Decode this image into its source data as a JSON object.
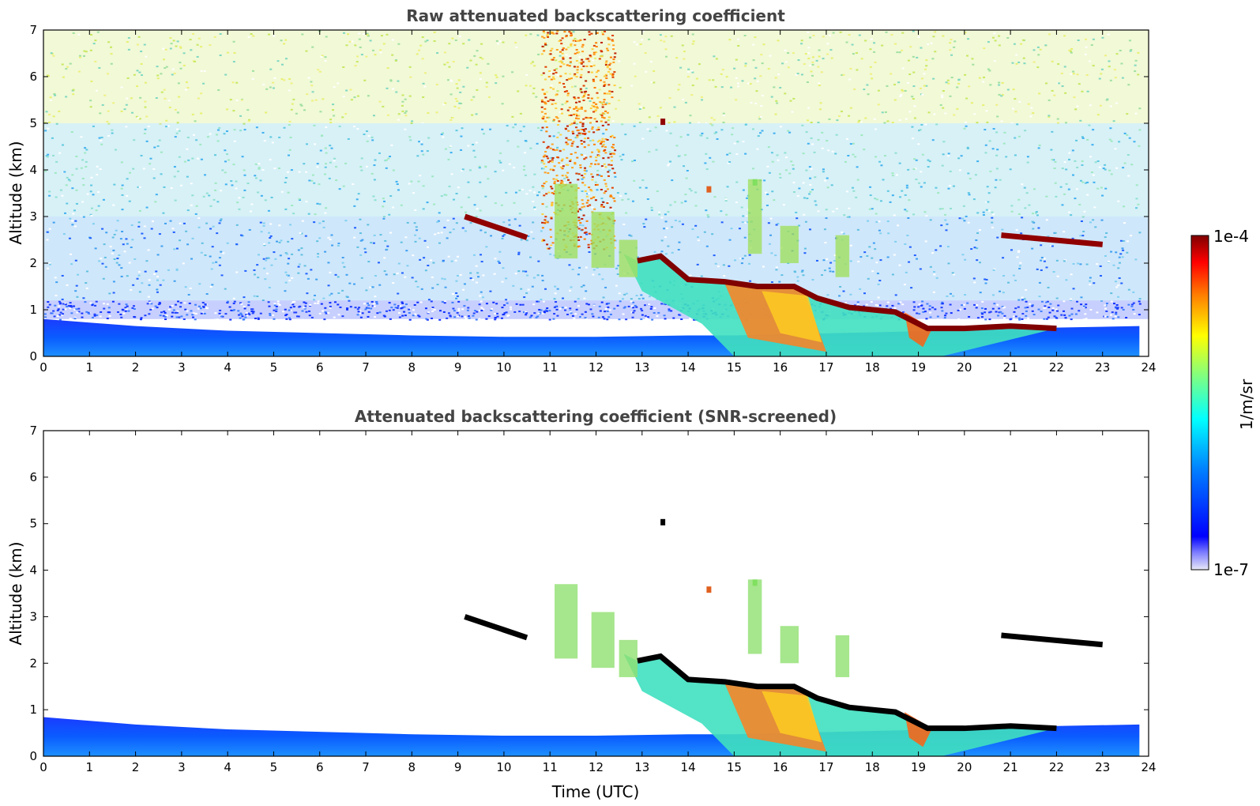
{
  "chart_data": [
    {
      "type": "heatmap",
      "title": "Raw attenuated backscattering coefficient",
      "xlabel": "",
      "ylabel": "Altitude (km)",
      "xlim": [
        0,
        24
      ],
      "ylim": [
        0,
        7
      ],
      "xticks": [
        "0",
        "1",
        "2",
        "3",
        "4",
        "5",
        "6",
        "7",
        "8",
        "9",
        "10",
        "11",
        "12",
        "13",
        "14",
        "15",
        "16",
        "17",
        "18",
        "19",
        "20",
        "21",
        "22",
        "23",
        "24"
      ],
      "yticks": [
        "0",
        "1",
        "2",
        "3",
        "4",
        "5",
        "6",
        "7"
      ],
      "colorscale": "jet",
      "background_noise": true,
      "features": {
        "boundary_layer": [
          [
            0,
            0.8
          ],
          [
            2,
            0.65
          ],
          [
            4,
            0.55
          ],
          [
            6,
            0.5
          ],
          [
            8,
            0.45
          ],
          [
            10,
            0.42
          ],
          [
            12,
            0.42
          ],
          [
            14,
            0.45
          ],
          [
            15,
            0.45
          ],
          [
            19.5,
            0.55
          ],
          [
            21,
            0.6
          ],
          [
            23.8,
            0.65
          ]
        ],
        "cloud_base": [
          [
            12.9,
            2.05
          ],
          [
            13.4,
            2.15
          ],
          [
            14,
            1.65
          ],
          [
            14.8,
            1.6
          ],
          [
            15.5,
            1.5
          ],
          [
            16.3,
            1.5
          ],
          [
            16.8,
            1.25
          ],
          [
            17.5,
            1.05
          ],
          [
            18.5,
            0.95
          ],
          [
            19.2,
            0.6
          ],
          [
            20,
            0.6
          ],
          [
            21,
            0.65
          ],
          [
            22,
            0.6
          ]
        ],
        "elevated_layers": [
          {
            "x": [
              9.15,
              10.5
            ],
            "y": [
              3.0,
              2.55
            ]
          },
          {
            "x": [
              20.8,
              23.0
            ],
            "y": [
              2.6,
              2.4
            ]
          }
        ]
      }
    },
    {
      "type": "heatmap",
      "title": "Attenuated backscattering coefficient (SNR-screened)",
      "xlabel": "Time (UTC)",
      "ylabel": "Altitude (km)",
      "xlim": [
        0,
        24
      ],
      "ylim": [
        0,
        7
      ],
      "xticks": [
        "0",
        "1",
        "2",
        "3",
        "4",
        "5",
        "6",
        "7",
        "8",
        "9",
        "10",
        "11",
        "12",
        "13",
        "14",
        "15",
        "16",
        "17",
        "18",
        "19",
        "20",
        "21",
        "22",
        "23",
        "24"
      ],
      "yticks": [
        "0",
        "1",
        "2",
        "3",
        "4",
        "5",
        "6",
        "7"
      ],
      "colorscale": "jet",
      "background_noise": false
    }
  ],
  "colorbar": {
    "label": "1/m/sr",
    "max_label": "1e-4",
    "min_label": "1e-7",
    "colors": [
      "#e8e8f8",
      "#7f7fff",
      "#0000ff",
      "#0080ff",
      "#00ffff",
      "#80ff80",
      "#ffff00",
      "#ff8000",
      "#ff0000",
      "#800000"
    ]
  }
}
